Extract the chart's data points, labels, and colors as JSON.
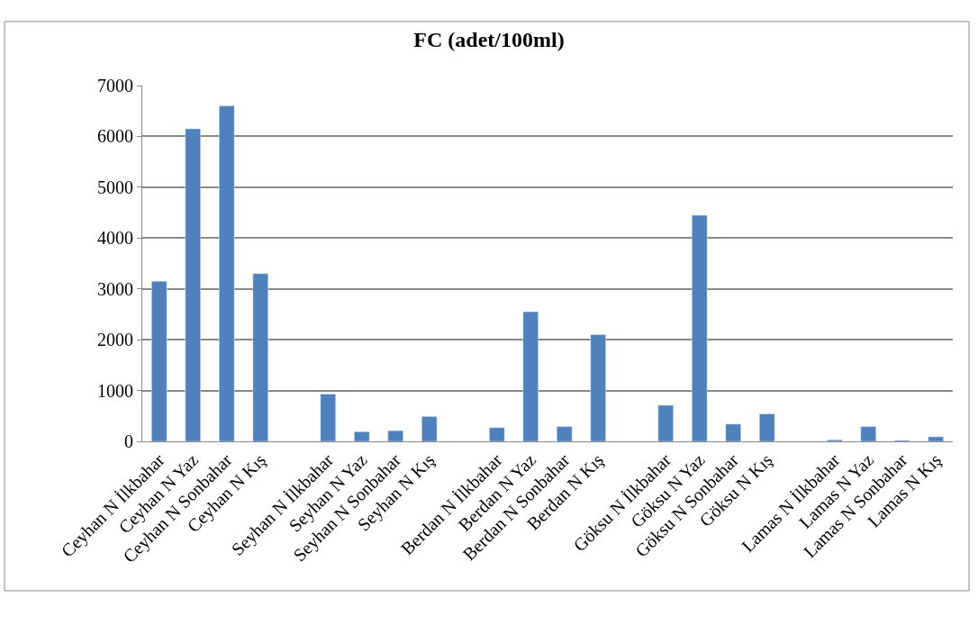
{
  "chart_data": {
    "type": "bar",
    "title": "FC (adet/100ml)",
    "categories": [
      "Ceyhan N İlkbahar",
      "Ceyhan N Yaz",
      "Ceyhan N Sonbahar",
      "Ceyhan N Kış",
      null,
      "Seyhan N İlkbahar",
      "Seyhan N Yaz",
      "Seyhan N Sonbahar",
      "Seyhan N Kış",
      null,
      "Berdan N İlkbahar",
      "Berdan N Yaz",
      "Berdan N Sonbahar",
      "Berdan N Kış",
      null,
      "Göksu N İlkbahar",
      "Göksu N Yaz",
      "Göksu N Sonbahar",
      "Göksu N Kış",
      null,
      "Lamas N İlkbahar",
      "Lamas N Yaz",
      "Lamas N Sonbahar",
      "Lamas N Kış"
    ],
    "values": [
      3150,
      6150,
      6600,
      3300,
      null,
      930,
      190,
      210,
      490,
      null,
      270,
      2550,
      290,
      2100,
      null,
      710,
      4450,
      340,
      540,
      null,
      30,
      290,
      20,
      90
    ],
    "color": "#4f81bd",
    "ylim": [
      0,
      7000
    ],
    "yticks": [
      0,
      1000,
      2000,
      3000,
      4000,
      5000,
      6000,
      7000
    ],
    "grid": "y",
    "legend": false
  }
}
